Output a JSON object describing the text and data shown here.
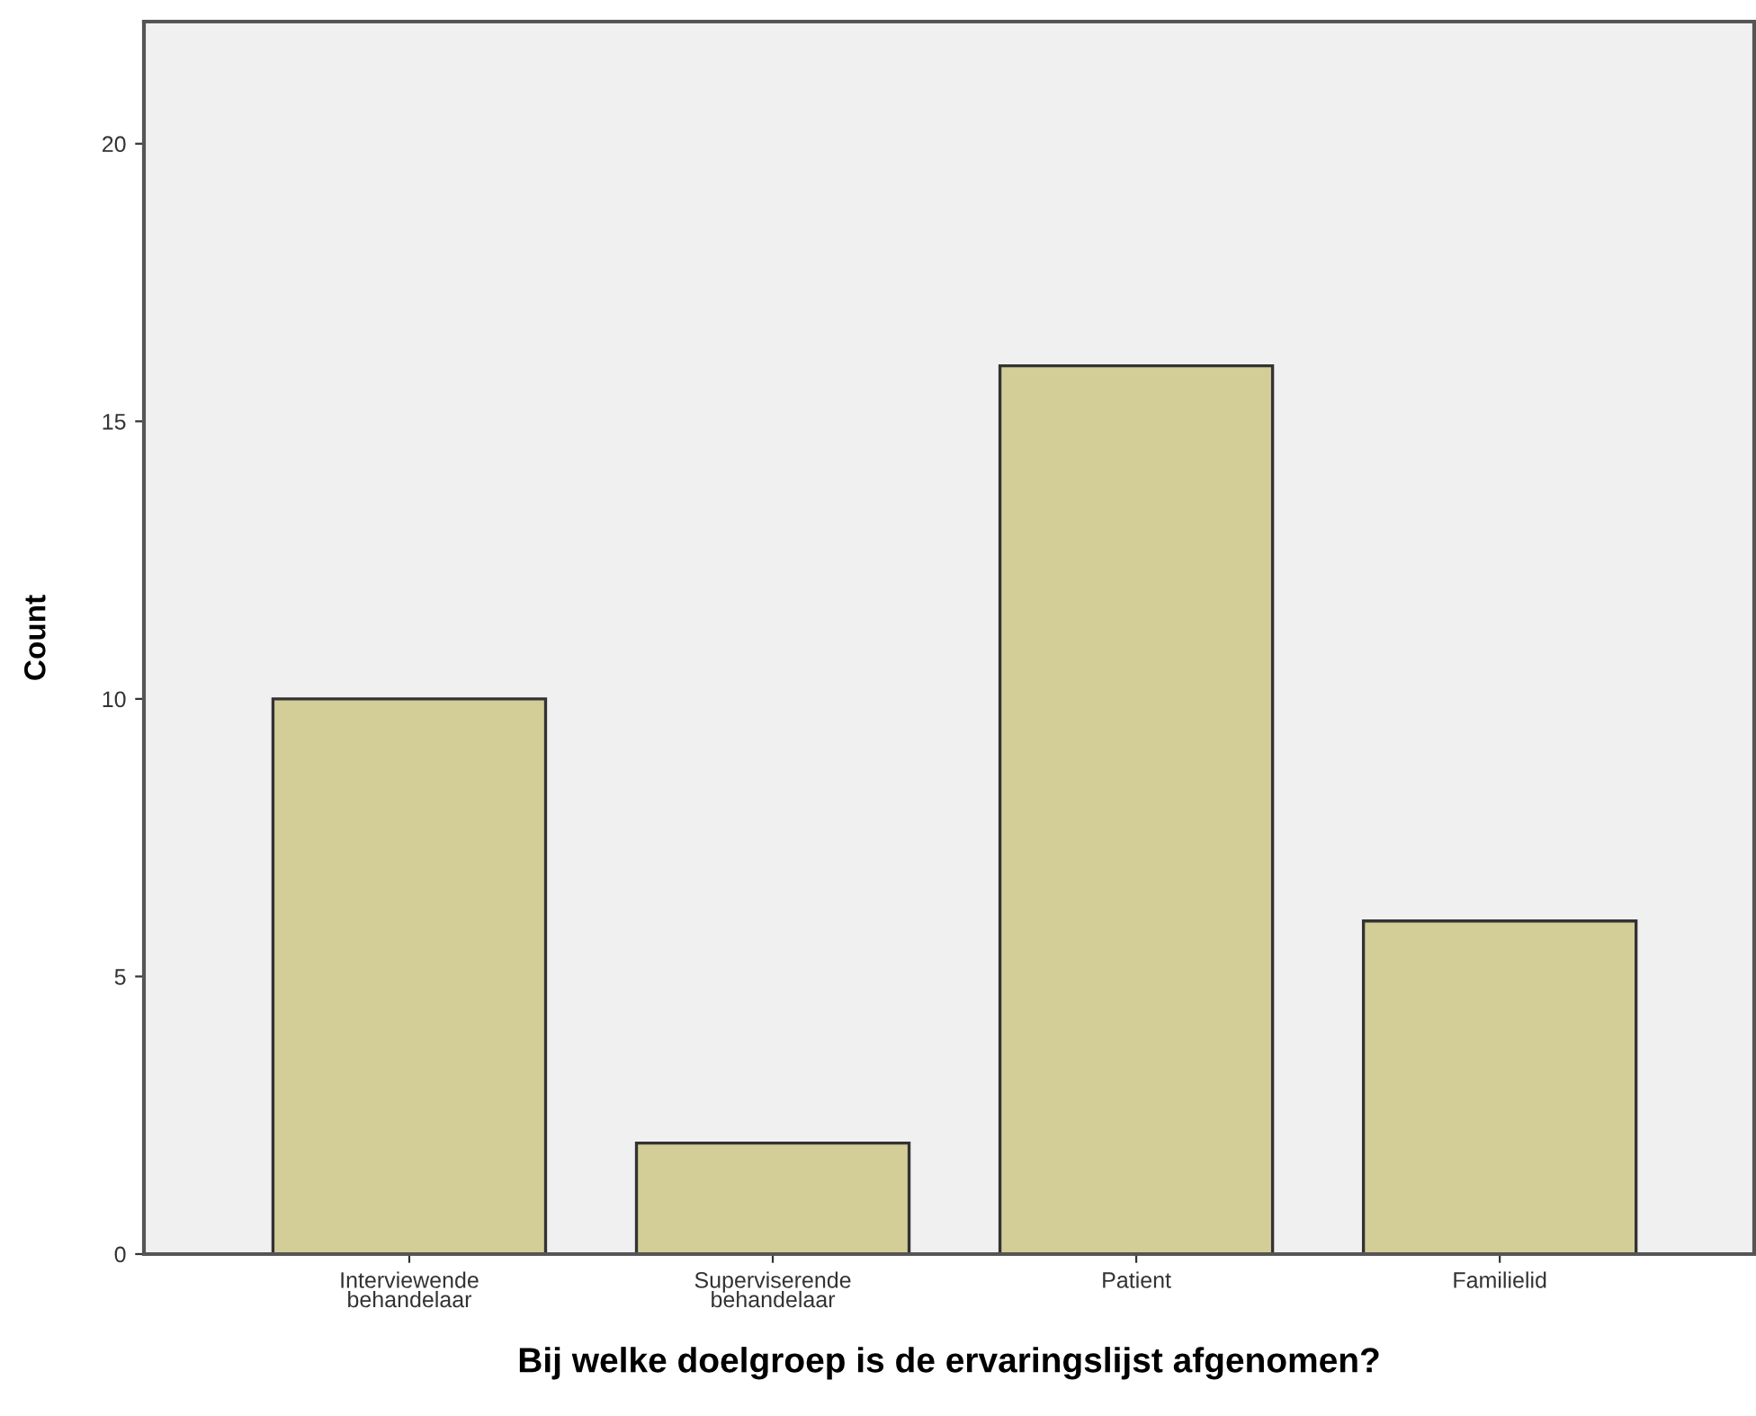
{
  "chart_data": {
    "type": "bar",
    "xlabel": "Bij welke doelgroep is de ervaringslijst afgenomen?",
    "ylabel": "Count",
    "categories": [
      "Interviewende\nbehandelaar",
      "Superviserende\nbehandelaar",
      "Patient",
      "Familielid"
    ],
    "values": [
      10,
      2,
      16,
      6
    ],
    "color": "#d3ce98",
    "ylim": [
      0,
      22.2
    ],
    "yticks": [
      0,
      5,
      10,
      15,
      20
    ],
    "grid": false
  }
}
